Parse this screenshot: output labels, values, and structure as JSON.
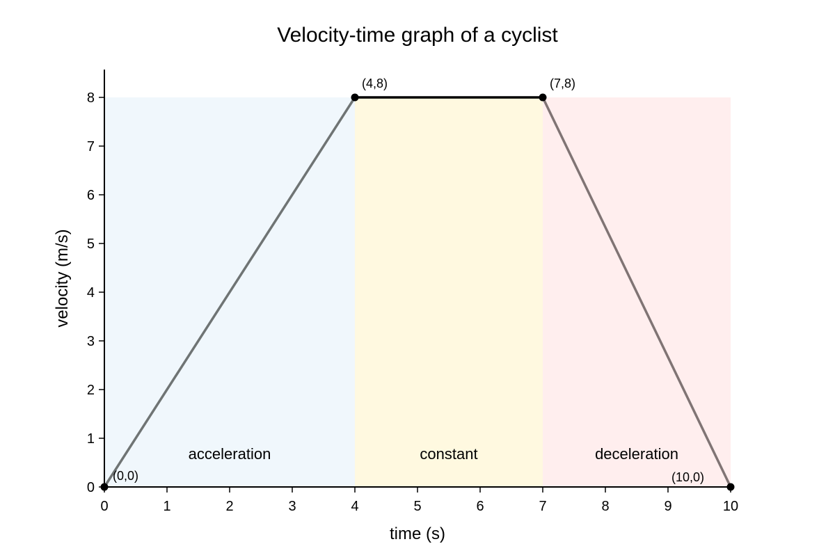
{
  "chart_data": {
    "type": "line",
    "title": "Velocity-time graph of a cyclist",
    "xlabel": "time (s)",
    "ylabel": "velocity (m/s)",
    "xlim": [
      0,
      10
    ],
    "ylim": [
      0,
      8
    ],
    "grid": false,
    "x_ticks": [
      0,
      1,
      2,
      3,
      4,
      5,
      6,
      7,
      8,
      9,
      10
    ],
    "y_ticks": [
      0,
      1,
      2,
      3,
      4,
      5,
      6,
      7,
      8
    ],
    "series": [
      {
        "x": [
          0,
          4,
          7,
          10
        ],
        "y": [
          0,
          8,
          8,
          0
        ]
      }
    ],
    "regions": [
      {
        "label": "acceleration",
        "x_start": 0,
        "x_end": 4,
        "color": "#f0f7fc"
      },
      {
        "label": "constant",
        "x_start": 4,
        "x_end": 7,
        "color": "#fff9e0"
      },
      {
        "label": "deceleration",
        "x_start": 7,
        "x_end": 10,
        "color": "#ffeeee"
      }
    ],
    "segment_colors": [
      "#6f7474",
      "#000000",
      "#807474"
    ],
    "point_labels": [
      {
        "text": "(0,0)",
        "x": 0,
        "y": 0
      },
      {
        "text": "(4,8)",
        "x": 4,
        "y": 8
      },
      {
        "text": "(7,8)",
        "x": 7,
        "y": 8
      },
      {
        "text": "(10,0)",
        "x": 10,
        "y": 0
      }
    ]
  }
}
